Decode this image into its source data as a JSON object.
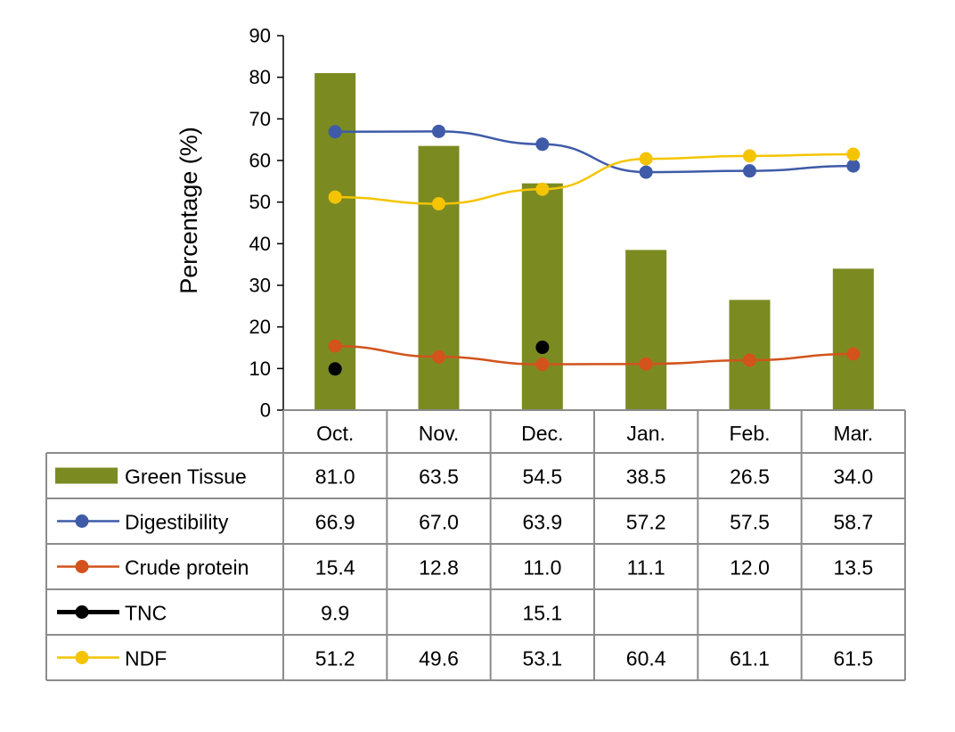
{
  "chart_data": {
    "type": "bar",
    "ylabel": "Percentage (%)",
    "ylim": [
      0,
      90
    ],
    "yticks": [
      0,
      10,
      20,
      30,
      40,
      50,
      60,
      70,
      80,
      90
    ],
    "categories": [
      "Oct.",
      "Nov.",
      "Dec.",
      "Jan.",
      "Feb.",
      "Mar."
    ],
    "series": [
      {
        "name": "Green Tissue",
        "kind": "bar",
        "color": "#7B8B22",
        "values": [
          81.0,
          63.5,
          54.5,
          38.5,
          26.5,
          34.0
        ],
        "labels": [
          "81.0",
          "63.5",
          "54.5",
          "38.5",
          "26.5",
          "34.0"
        ]
      },
      {
        "name": "Digestibility",
        "kind": "line",
        "color": "#3F5BA8",
        "values": [
          66.9,
          67.0,
          63.9,
          57.2,
          57.5,
          58.7
        ],
        "labels": [
          "66.9",
          "67.0",
          "63.9",
          "57.2",
          "57.5",
          "58.7"
        ]
      },
      {
        "name": "Crude protein",
        "kind": "line",
        "color": "#D2531B",
        "values": [
          15.4,
          12.8,
          11.0,
          11.1,
          12.0,
          13.5
        ],
        "labels": [
          "15.4",
          "12.8",
          "11.0",
          "11.1",
          "12.0",
          "13.5"
        ]
      },
      {
        "name": "TNC",
        "kind": "markers",
        "color": "#000000",
        "values": [
          9.9,
          null,
          15.1,
          null,
          null,
          null
        ],
        "labels": [
          "9.9",
          "",
          "15.1",
          "",
          "",
          ""
        ]
      },
      {
        "name": "NDF",
        "kind": "line",
        "color": "#F5C400",
        "values": [
          51.2,
          49.6,
          53.1,
          60.4,
          61.1,
          61.5
        ],
        "labels": [
          "51.2",
          "49.6",
          "53.1",
          "60.4",
          "61.1",
          "61.5"
        ]
      }
    ]
  }
}
